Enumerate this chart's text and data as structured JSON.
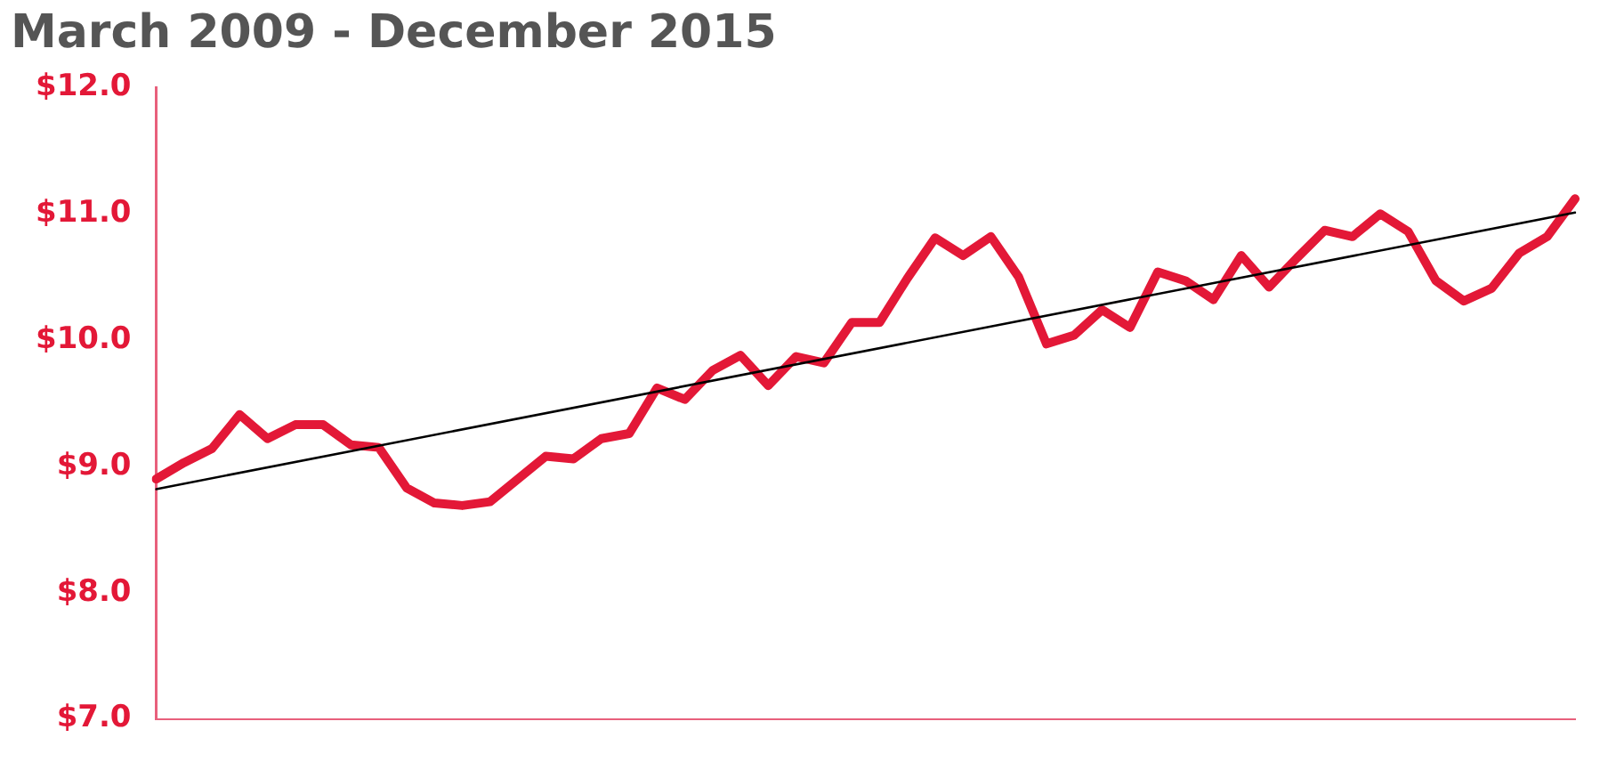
{
  "chart_data": {
    "type": "line",
    "title": "March 2009 - December 2015",
    "categories": [
      null,
      null,
      null,
      null,
      null,
      null,
      null,
      null,
      null,
      null,
      null,
      null,
      null,
      null,
      null,
      null,
      null,
      null,
      null,
      null,
      null,
      null,
      null,
      null,
      null,
      null,
      null,
      null,
      null,
      null,
      null,
      null,
      null,
      null,
      null,
      null,
      null,
      null,
      null,
      null,
      null,
      null,
      null,
      null,
      null,
      null,
      null,
      null,
      null,
      null,
      null,
      null
    ],
    "series": [
      {
        "color": "#e31837",
        "values": [
          8.9,
          9.03,
          9.14,
          9.41,
          9.22,
          9.33,
          9.33,
          9.17,
          9.15,
          8.83,
          8.71,
          8.69,
          8.72,
          8.9,
          9.08,
          9.06,
          9.22,
          9.26,
          9.62,
          9.53,
          9.76,
          9.88,
          9.64,
          9.87,
          9.82,
          10.14,
          10.14,
          10.49,
          10.81,
          10.67,
          10.82,
          10.5,
          9.97,
          10.04,
          10.24,
          10.1,
          10.54,
          10.47,
          10.32,
          10.67,
          10.42,
          10.65,
          10.87,
          10.82,
          11.0,
          10.86,
          10.47,
          10.31,
          10.41,
          10.69,
          10.82,
          11.12
        ]
      },
      {
        "type": "line",
        "color": "#000000",
        "values": [
          8.82,
          null,
          null,
          null,
          null,
          null,
          null,
          null,
          null,
          null,
          null,
          null,
          null,
          null,
          null,
          null,
          null,
          null,
          null,
          null,
          null,
          null,
          null,
          null,
          null,
          null,
          null,
          null,
          null,
          null,
          null,
          null,
          null,
          null,
          null,
          null,
          null,
          null,
          null,
          null,
          null,
          null,
          null,
          null,
          null,
          null,
          null,
          null,
          null,
          null,
          null,
          11.01
        ]
      }
    ],
    "ylim": [
      7,
      12
    ],
    "yticks": [
      {
        "value": 7,
        "label": "$7.0"
      },
      {
        "value": 8,
        "label": "$8.0"
      },
      {
        "value": 9,
        "label": "$9.0"
      },
      {
        "value": 10,
        "label": "$10.0"
      },
      {
        "value": 11,
        "label": "$11.0"
      },
      {
        "value": 12,
        "label": "$12.0"
      }
    ],
    "grid": false,
    "legend": false,
    "tick_labels": "y",
    "marker": "none",
    "line_style": "solid"
  }
}
